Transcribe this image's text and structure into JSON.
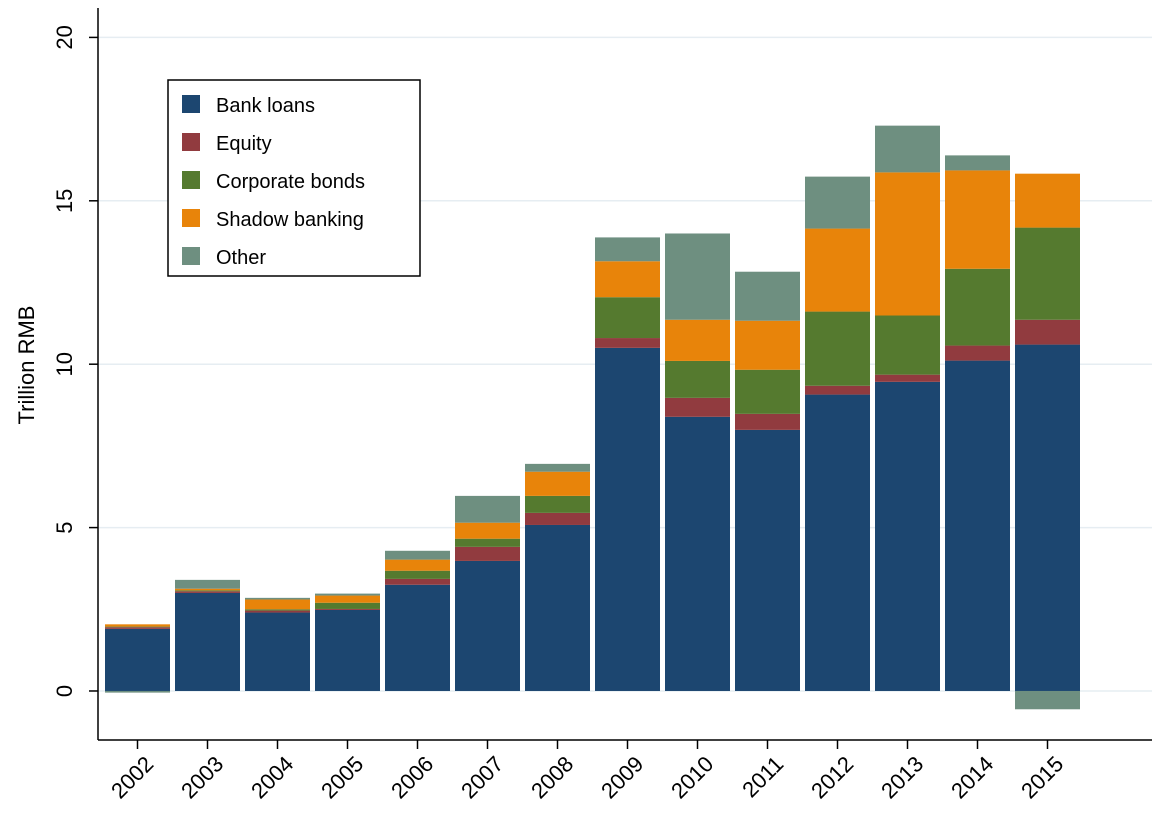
{
  "chart_data": {
    "type": "stacked-bar",
    "y_label": "Trillion RMB",
    "categories": [
      "2002",
      "2003",
      "2004",
      "2005",
      "2006",
      "2007",
      "2008",
      "2009",
      "2010",
      "2011",
      "2012",
      "2013",
      "2014",
      "2015"
    ],
    "series": [
      {
        "name": "Bank loans",
        "color": "#1c4670",
        "values": [
          1.9,
          3.0,
          2.4,
          2.48,
          3.25,
          3.98,
          5.08,
          10.5,
          8.39,
          7.99,
          9.07,
          9.46,
          10.11,
          10.6
        ]
      },
      {
        "name": "Equity",
        "color": "#913b3f",
        "values": [
          0.05,
          0.05,
          0.06,
          0.03,
          0.18,
          0.43,
          0.37,
          0.3,
          0.58,
          0.49,
          0.27,
          0.22,
          0.46,
          0.76
        ]
      },
      {
        "name": "Corporate bonds",
        "color": "#557a2f",
        "values": [
          0.02,
          0.03,
          0.04,
          0.19,
          0.25,
          0.25,
          0.52,
          1.25,
          1.13,
          1.35,
          2.27,
          1.81,
          2.35,
          2.82
        ]
      },
      {
        "name": "Shadow banking",
        "color": "#e8840a",
        "values": [
          0.07,
          0.05,
          0.3,
          0.22,
          0.34,
          0.49,
          0.74,
          1.1,
          1.26,
          1.5,
          2.54,
          4.38,
          3.01,
          1.65
        ]
      },
      {
        "name": "Other",
        "color": "#6e8f80",
        "values": [
          -0.05,
          0.27,
          0.05,
          0.06,
          0.27,
          0.82,
          0.24,
          0.73,
          2.64,
          1.5,
          1.59,
          1.43,
          0.46,
          -0.56
        ]
      }
    ],
    "ylim": [
      -1.5,
      20.9
    ],
    "yticks": [
      0,
      5,
      10,
      15,
      20
    ],
    "grid": true,
    "legend_position": "upper-left"
  }
}
